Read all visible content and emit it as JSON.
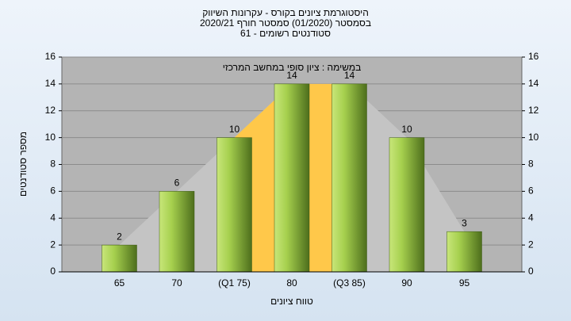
{
  "chart_data": {
    "type": "bar",
    "title": "היסטוגרמת ציונים בקורס - עקרונות השיווק",
    "subtitle": "בסמסטר  (01/2020)  סמסטר חורף 2020/21",
    "subtitle2": "סטודנטים רשומים - 61",
    "annotation": "במשימה : ציון סופי במחשב המרכזי",
    "x_label": "טווח ציונים",
    "y_label": "מספר סטודנטים",
    "categories": [
      "65",
      "70",
      "(Q1 75)",
      "80",
      "(Q3 85)",
      "90",
      "95"
    ],
    "values": [
      2,
      6,
      10,
      14,
      14,
      10,
      3
    ],
    "color": "#8fbf3a",
    "ylim": [
      0,
      16
    ],
    "yticks": [
      0,
      2,
      4,
      6,
      8,
      10,
      12,
      14,
      16
    ],
    "y2lim": [
      0,
      16
    ],
    "y2ticks": [
      0,
      2,
      4,
      6,
      8,
      10,
      12,
      14,
      16
    ],
    "grid": true
  }
}
